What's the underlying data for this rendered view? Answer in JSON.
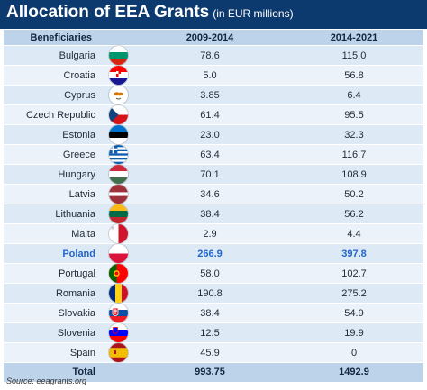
{
  "title": "Allocation of EEA Grants",
  "subtitle": "(in EUR millions)",
  "source": "Source: eeagrants.org",
  "chart_data": {
    "type": "table",
    "columns": [
      "Beneficiaries",
      "",
      "2009-2014",
      "2014-2021"
    ],
    "rows": [
      {
        "name": "Bulgaria",
        "flag": "bulgaria-flag-icon",
        "v2009": "78.6",
        "v2014": "115.0"
      },
      {
        "name": "Croatia",
        "flag": "croatia-flag-icon",
        "v2009": "5.0",
        "v2014": "56.8"
      },
      {
        "name": "Cyprus",
        "flag": "cyprus-flag-icon",
        "v2009": "3.85",
        "v2014": "6.4"
      },
      {
        "name": "Czech Republic",
        "flag": "czech-republic-flag-icon",
        "v2009": "61.4",
        "v2014": "95.5"
      },
      {
        "name": "Estonia",
        "flag": "estonia-flag-icon",
        "v2009": "23.0",
        "v2014": "32.3"
      },
      {
        "name": "Greece",
        "flag": "greece-flag-icon",
        "v2009": "63.4",
        "v2014": "116.7"
      },
      {
        "name": "Hungary",
        "flag": "hungary-flag-icon",
        "v2009": "70.1",
        "v2014": "108.9"
      },
      {
        "name": "Latvia",
        "flag": "latvia-flag-icon",
        "v2009": "34.6",
        "v2014": "50.2"
      },
      {
        "name": "Lithuania",
        "flag": "lithuania-flag-icon",
        "v2009": "38.4",
        "v2014": "56.2"
      },
      {
        "name": "Malta",
        "flag": "malta-flag-icon",
        "v2009": "2.9",
        "v2014": "4.4"
      },
      {
        "name": "Poland",
        "flag": "poland-flag-icon",
        "v2009": "266.9",
        "v2014": "397.8",
        "highlight": true
      },
      {
        "name": "Portugal",
        "flag": "portugal-flag-icon",
        "v2009": "58.0",
        "v2014": "102.7"
      },
      {
        "name": "Romania",
        "flag": "romania-flag-icon",
        "v2009": "190.8",
        "v2014": "275.2"
      },
      {
        "name": "Slovakia",
        "flag": "slovakia-flag-icon",
        "v2009": "38.4",
        "v2014": "54.9"
      },
      {
        "name": "Slovenia",
        "flag": "slovenia-flag-icon",
        "v2009": "12.5",
        "v2014": "19.9"
      },
      {
        "name": "Spain",
        "flag": "spain-flag-icon",
        "v2009": "45.9",
        "v2014": "0"
      }
    ],
    "total": {
      "label": "Total",
      "v2009": "993.75",
      "v2014": "1492.9"
    }
  },
  "colors": {
    "header_bg": "#0d3a6e",
    "row_odd": "#dde9f5",
    "row_even": "#ebf2fa",
    "col_header": "#bcd3ea",
    "highlight_text": "#2266cc"
  }
}
